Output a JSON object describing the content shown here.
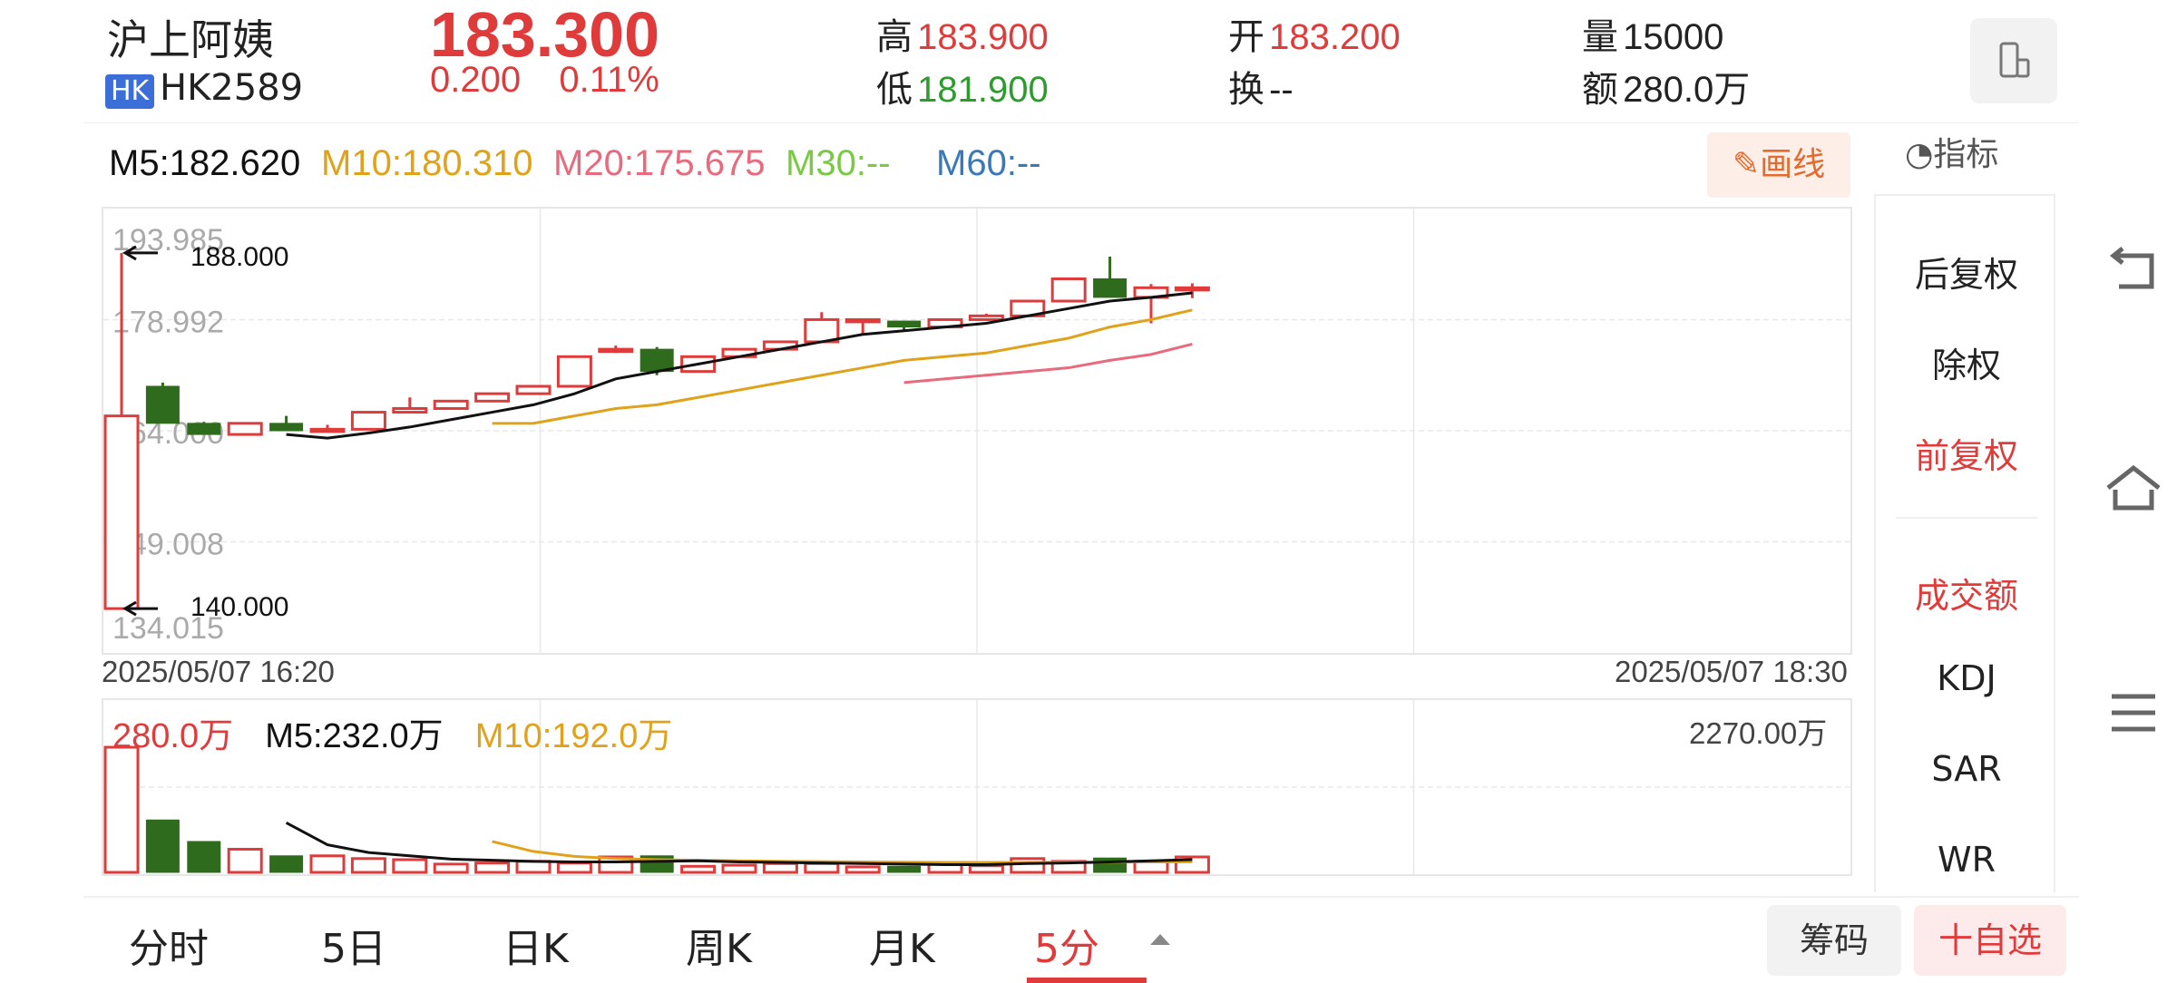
{
  "header": {
    "stock_name": "沪上阿姨",
    "market_badge": "HK",
    "stock_code": "HK2589",
    "price": "183.300",
    "change_value": "0.200",
    "change_percent": "0.11%",
    "high_label": "高",
    "high_value": "183.900",
    "low_label": "低",
    "low_value": "181.900",
    "open_label": "开",
    "open_value": "183.200",
    "turnover_label": "换",
    "turnover_value": "--",
    "volume_label": "量",
    "volume_value": "15000",
    "amount_label": "额",
    "amount_value": "280.0万",
    "device_icon": "phone-landscape-icon"
  },
  "ma_bar": {
    "m5": "M5:182.620",
    "m10": "M10:180.310",
    "m20": "M20:175.675",
    "m30": "M30:--",
    "m60": "M60:--",
    "draw_button": "画线",
    "indicator_button": "指标"
  },
  "colors": {
    "up": "#e03b3b",
    "down": "#2f6b1c",
    "m5": "#111111",
    "m10": "#e0a21a",
    "m20": "#e86a7c",
    "m30": "#7ac943",
    "m60": "#3a78b8"
  },
  "chart_data": [
    {
      "type": "candlestick",
      "ylim": [
        134.015,
        193.985
      ],
      "y_ticks": [
        "193.985",
        "178.992",
        "164.000",
        "149.008",
        "134.015"
      ],
      "annotations": {
        "max": "188.000",
        "min": "140.000"
      },
      "x_start_label": "2025/05/07 16:20",
      "x_end_label": "2025/05/07 18:30",
      "candles": [
        {
          "o": 140.0,
          "h": 188.0,
          "c": 166.0,
          "l": 140.0
        },
        {
          "o": 170.0,
          "h": 170.5,
          "c": 165.0,
          "l": 165.0
        },
        {
          "o": 165.0,
          "h": 165.2,
          "c": 163.5,
          "l": 163.5
        },
        {
          "o": 163.5,
          "h": 165.0,
          "c": 165.0,
          "l": 163.5
        },
        {
          "o": 165.0,
          "h": 166.0,
          "c": 164.0,
          "l": 164.0
        },
        {
          "o": 164.0,
          "h": 164.8,
          "c": 164.2,
          "l": 164.0
        },
        {
          "o": 164.2,
          "h": 166.5,
          "c": 166.5,
          "l": 164.2
        },
        {
          "o": 166.5,
          "h": 168.5,
          "c": 167.0,
          "l": 166.5
        },
        {
          "o": 167.0,
          "h": 168.0,
          "c": 168.0,
          "l": 167.0
        },
        {
          "o": 168.0,
          "h": 169.0,
          "c": 169.0,
          "l": 168.0
        },
        {
          "o": 169.0,
          "h": 170.0,
          "c": 170.0,
          "l": 169.0
        },
        {
          "o": 170.0,
          "h": 174.0,
          "c": 174.0,
          "l": 170.0
        },
        {
          "o": 175.0,
          "h": 175.5,
          "c": 175.0,
          "l": 174.5
        },
        {
          "o": 175.0,
          "h": 175.3,
          "c": 172.0,
          "l": 171.5
        },
        {
          "o": 172.0,
          "h": 174.0,
          "c": 174.0,
          "l": 172.0
        },
        {
          "o": 174.0,
          "h": 175.0,
          "c": 175.0,
          "l": 174.0
        },
        {
          "o": 175.0,
          "h": 176.0,
          "c": 176.0,
          "l": 175.0
        },
        {
          "o": 176.0,
          "h": 180.0,
          "c": 179.0,
          "l": 176.0
        },
        {
          "o": 179.0,
          "h": 179.0,
          "c": 179.0,
          "l": 177.0
        },
        {
          "o": 178.8,
          "h": 178.8,
          "c": 178.0,
          "l": 177.5
        },
        {
          "o": 178.0,
          "h": 179.0,
          "c": 179.0,
          "l": 178.0
        },
        {
          "o": 179.0,
          "h": 179.8,
          "c": 179.5,
          "l": 179.0
        },
        {
          "o": 179.5,
          "h": 181.5,
          "c": 181.5,
          "l": 179.5
        },
        {
          "o": 181.5,
          "h": 184.5,
          "c": 184.5,
          "l": 181.5
        },
        {
          "o": 184.5,
          "h": 187.5,
          "c": 182.0,
          "l": 182.0
        },
        {
          "o": 182.0,
          "h": 183.8,
          "c": 183.3,
          "l": 178.5
        },
        {
          "o": 183.2,
          "h": 183.9,
          "c": 183.3,
          "l": 181.9
        }
      ],
      "ma5": [
        null,
        null,
        null,
        null,
        163.5,
        163.0,
        163.7,
        164.5,
        165.5,
        166.5,
        167.5,
        169.0,
        171.0,
        172.0,
        173.0,
        174.0,
        175.0,
        176.0,
        177.0,
        177.5,
        178.0,
        178.5,
        179.5,
        180.5,
        181.5,
        182.0,
        182.6
      ],
      "ma10": [
        null,
        null,
        null,
        null,
        null,
        null,
        null,
        null,
        null,
        165.0,
        165.0,
        166.0,
        167.0,
        167.5,
        168.5,
        169.5,
        170.5,
        171.5,
        172.5,
        173.5,
        174.0,
        174.5,
        175.5,
        176.5,
        178.0,
        179.0,
        180.3
      ],
      "ma20": [
        null,
        null,
        null,
        null,
        null,
        null,
        null,
        null,
        null,
        null,
        null,
        null,
        null,
        null,
        null,
        null,
        null,
        null,
        null,
        170.5,
        171.0,
        171.5,
        172.0,
        172.5,
        173.5,
        174.3,
        175.7
      ]
    },
    {
      "type": "bar",
      "title": "280.0万",
      "m5_label": "M5:232.0万",
      "m10_label": "M10:192.0万",
      "max_label": "2270.00万",
      "ylim": [
        0,
        2270
      ],
      "values": [
        2270,
        950,
        560,
        420,
        300,
        300,
        250,
        230,
        150,
        170,
        200,
        170,
        280,
        300,
        110,
        130,
        160,
        160,
        100,
        110,
        160,
        120,
        250,
        200,
        260,
        200,
        280
      ],
      "ma5": [
        null,
        null,
        null,
        null,
        900,
        500,
        360,
        300,
        240,
        220,
        200,
        190,
        190,
        200,
        210,
        190,
        180,
        170,
        160,
        150,
        140,
        140,
        160,
        170,
        190,
        210,
        232
      ],
      "ma10": [
        null,
        null,
        null,
        null,
        null,
        null,
        null,
        null,
        null,
        560,
        380,
        290,
        250,
        230,
        220,
        210,
        200,
        195,
        190,
        185,
        180,
        180,
        180,
        185,
        185,
        190,
        192
      ]
    }
  ],
  "side_menu": {
    "items": [
      "后复权",
      "除权",
      "前复权",
      "成交额",
      "KDJ",
      "SAR",
      "WR"
    ]
  },
  "system_nav": {
    "back_icon": "back-arrow-icon",
    "home_icon": "home-icon",
    "menu_icon": "menu-icon"
  },
  "tabs": {
    "items": [
      "分时",
      "5日",
      "日K",
      "周K",
      "月K",
      "5分"
    ],
    "chip_button": "筹码",
    "favorite_button": "十自选"
  }
}
